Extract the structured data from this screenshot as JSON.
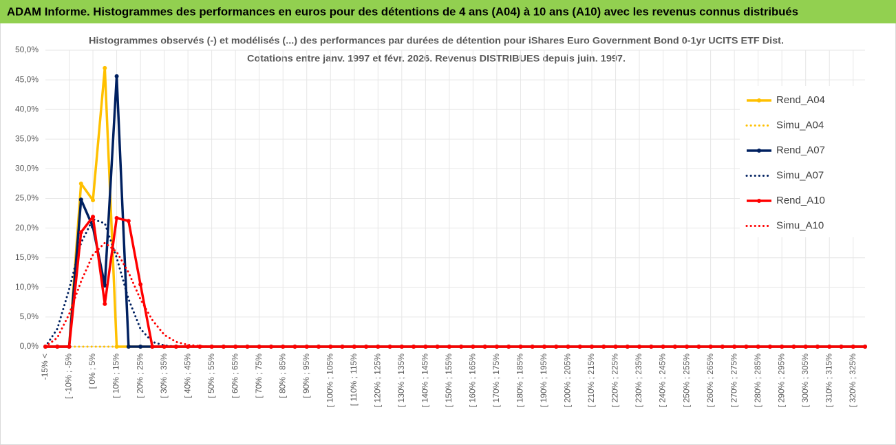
{
  "header": {
    "title": "ADAM Informe. Histogrammes des performances en euros pour des détentions de 4 ans (A04) à 10 ans (A10) avec les revenus connus distribués"
  },
  "chart_data": {
    "type": "line",
    "title": [
      "Histogrammes observés (-) et modélisés (...) des performances par durées de détention pour iShares Euro Government Bond 0-1yr UCITS ETF Dist.",
      "Cotations entre janv. 1997 et févr. 2026. Revenus DISTRIBUES depuis juin. 1997."
    ],
    "categories": [
      "-15% <",
      null,
      "[ -10% ; -5%",
      null,
      "[ 0% ; 5%",
      null,
      "[ 10% ; 15%",
      null,
      "[ 20% ; 25%",
      null,
      "[ 30% ; 35%",
      null,
      "[ 40% ; 45%",
      null,
      "[ 50% ; 55%",
      null,
      "[ 60% ; 65%",
      null,
      "[ 70% ; 75%",
      null,
      "[ 80% ; 85%",
      null,
      "[ 90% ; 95%",
      null,
      "[ 100% ; 105%",
      null,
      "[ 110% ; 115%",
      null,
      "[ 120% ; 125%",
      null,
      "[ 130% ; 135%",
      null,
      "[ 140% ; 145%",
      null,
      "[ 150% ; 155%",
      null,
      "[ 160% ; 165%",
      null,
      "[ 170% ; 175%",
      null,
      "[ 180% ; 185%",
      null,
      "[ 190% ; 195%",
      null,
      "[ 200% ; 205%",
      null,
      "[ 210% ; 215%",
      null,
      "[ 220% ; 225%",
      null,
      "[ 230% ; 235%",
      null,
      "[ 240% ; 245%",
      null,
      "[ 250% ; 255%",
      null,
      "[ 260% ; 265%",
      null,
      "[ 270% ; 275%",
      null,
      "[ 280% ; 285%",
      null,
      "[ 290% ; 295%",
      null,
      "[ 300% ; 305%",
      null,
      "[ 310% ; 315%",
      null,
      "[ 320% ; 325%",
      null
    ],
    "series": [
      {
        "name": "Rend_A04",
        "color": "#ffc000",
        "style": "solid",
        "marker": true,
        "values": [
          0,
          0,
          0,
          27.5,
          24.7,
          47,
          0,
          0,
          0,
          0,
          0,
          0,
          0,
          0,
          0,
          0,
          0,
          0,
          0,
          0,
          0,
          0,
          0,
          0,
          0,
          0,
          0,
          0,
          0,
          0,
          0,
          0,
          0,
          0,
          0,
          0,
          0,
          0,
          0,
          0,
          0,
          0,
          0,
          0,
          0,
          0,
          0,
          0,
          0,
          0,
          0,
          0,
          0,
          0,
          0,
          0,
          0,
          0,
          0,
          0,
          0,
          0,
          0,
          0,
          0,
          0,
          0,
          0,
          0,
          0
        ]
      },
      {
        "name": "Simu_A04",
        "color": "#ffc000",
        "style": "dotted",
        "marker": false,
        "values": [
          0,
          0,
          0,
          0,
          0,
          0,
          0,
          0,
          0,
          0,
          0,
          0,
          0,
          0,
          0,
          0,
          0,
          0,
          0,
          0,
          0,
          0,
          0,
          0,
          0,
          0,
          0,
          0,
          0,
          0,
          0,
          0,
          0,
          0,
          0,
          0,
          0,
          0,
          0,
          0,
          0,
          0,
          0,
          0,
          0,
          0,
          0,
          0,
          0,
          0,
          0,
          0,
          0,
          0,
          0,
          0,
          0,
          0,
          0,
          0,
          0,
          0,
          0,
          0,
          0,
          0,
          0,
          0,
          0,
          0
        ]
      },
      {
        "name": "Rend_A07",
        "color": "#002060",
        "style": "solid",
        "marker": true,
        "values": [
          0,
          0,
          0,
          24.8,
          20.2,
          10.3,
          45.6,
          0,
          0,
          0,
          0,
          0,
          0,
          0,
          0,
          0,
          0,
          0,
          0,
          0,
          0,
          0,
          0,
          0,
          0,
          0,
          0,
          0,
          0,
          0,
          0,
          0,
          0,
          0,
          0,
          0,
          0,
          0,
          0,
          0,
          0,
          0,
          0,
          0,
          0,
          0,
          0,
          0,
          0,
          0,
          0,
          0,
          0,
          0,
          0,
          0,
          0,
          0,
          0,
          0,
          0,
          0,
          0,
          0,
          0,
          0,
          0,
          0,
          0,
          0
        ]
      },
      {
        "name": "Simu_A07",
        "color": "#002060",
        "style": "dotted",
        "marker": false,
        "values": [
          0,
          3,
          9.7,
          17.5,
          21.5,
          20.8,
          15,
          8,
          3,
          0.8,
          0.2,
          0,
          0,
          0,
          0,
          0,
          0,
          0,
          0,
          0,
          0,
          0,
          0,
          0,
          0,
          0,
          0,
          0,
          0,
          0,
          0,
          0,
          0,
          0,
          0,
          0,
          0,
          0,
          0,
          0,
          0,
          0,
          0,
          0,
          0,
          0,
          0,
          0,
          0,
          0,
          0,
          0,
          0,
          0,
          0,
          0,
          0,
          0,
          0,
          0,
          0,
          0,
          0,
          0,
          0,
          0,
          0,
          0,
          0,
          0
        ]
      },
      {
        "name": "Rend_A10",
        "color": "#ff0000",
        "style": "solid",
        "marker": true,
        "values": [
          0,
          0,
          0,
          19.3,
          21.9,
          7.2,
          21.7,
          21.2,
          10.5,
          0,
          0,
          0,
          0,
          0,
          0,
          0,
          0,
          0,
          0,
          0,
          0,
          0,
          0,
          0,
          0,
          0,
          0,
          0,
          0,
          0,
          0,
          0,
          0,
          0,
          0,
          0,
          0,
          0,
          0,
          0,
          0,
          0,
          0,
          0,
          0,
          0,
          0,
          0,
          0,
          0,
          0,
          0,
          0,
          0,
          0,
          0,
          0,
          0,
          0,
          0,
          0,
          0,
          0,
          0,
          0,
          0,
          0,
          0,
          0,
          0
        ]
      },
      {
        "name": "Simu_A10",
        "color": "#ff0000",
        "style": "dotted",
        "marker": false,
        "values": [
          0,
          1.5,
          5.5,
          11,
          15.5,
          17.5,
          16,
          12.5,
          8,
          4.5,
          2,
          0.8,
          0.3,
          0.1,
          0,
          0,
          0,
          0,
          0,
          0,
          0,
          0,
          0,
          0,
          0,
          0,
          0,
          0,
          0,
          0,
          0,
          0,
          0,
          0,
          0,
          0,
          0,
          0,
          0,
          0,
          0,
          0,
          0,
          0,
          0,
          0,
          0,
          0,
          0,
          0,
          0,
          0,
          0,
          0,
          0,
          0,
          0,
          0,
          0,
          0,
          0,
          0,
          0,
          0,
          0,
          0,
          0,
          0,
          0,
          0
        ]
      }
    ],
    "ylim": [
      0,
      50
    ],
    "yticks": [
      {
        "value": 0,
        "label": "0,0%"
      },
      {
        "value": 5,
        "label": "5,0%"
      },
      {
        "value": 10,
        "label": "10,0%"
      },
      {
        "value": 15,
        "label": "15,0%"
      },
      {
        "value": 20,
        "label": "20,0%"
      },
      {
        "value": 25,
        "label": "25,0%"
      },
      {
        "value": 30,
        "label": "30,0%"
      },
      {
        "value": 35,
        "label": "35,0%"
      },
      {
        "value": 40,
        "label": "40,0%"
      },
      {
        "value": 45,
        "label": "45,0%"
      },
      {
        "value": 50,
        "label": "50,0%"
      }
    ],
    "grid": true,
    "legend": "right"
  }
}
